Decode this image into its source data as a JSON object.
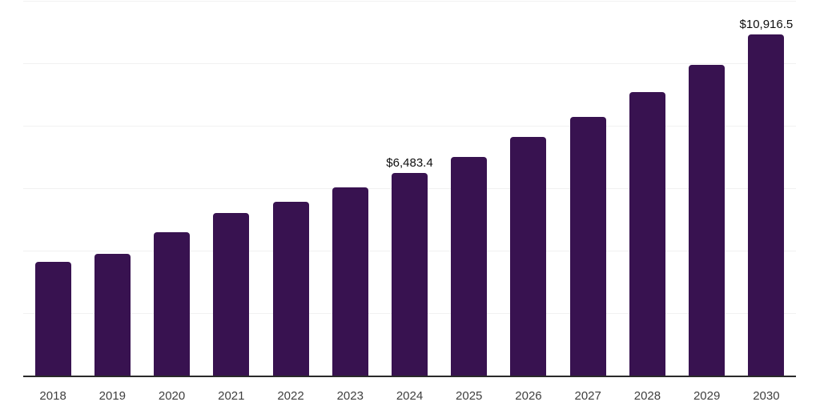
{
  "chart_data": {
    "type": "bar",
    "title": "",
    "xlabel": "",
    "ylabel": "",
    "categories": [
      "2018",
      "2019",
      "2020",
      "2021",
      "2022",
      "2023",
      "2024",
      "2025",
      "2026",
      "2027",
      "2028",
      "2029",
      "2030"
    ],
    "values": [
      3650,
      3890,
      4600,
      5200,
      5575,
      6035,
      6483.4,
      6990,
      7630,
      8285,
      9085,
      9950,
      10916.5
    ],
    "annotations": [
      {
        "category": "2024",
        "text": "$6,483.4"
      },
      {
        "category": "2030",
        "text": "$10,916.5"
      }
    ],
    "ylim": [
      0,
      12000
    ],
    "gridline_step": 2000,
    "grid": "horizontal-only",
    "legend": "none",
    "y_axis_labels": "hidden",
    "bar_color": "#381250"
  },
  "colors": {
    "background": "#ffffff",
    "bar": "#381250",
    "gridline": "#f1f1f1",
    "axis_line": "#2a2a2a",
    "tick_label": "#3f3f3f",
    "value_label": "#0f0f0f"
  }
}
